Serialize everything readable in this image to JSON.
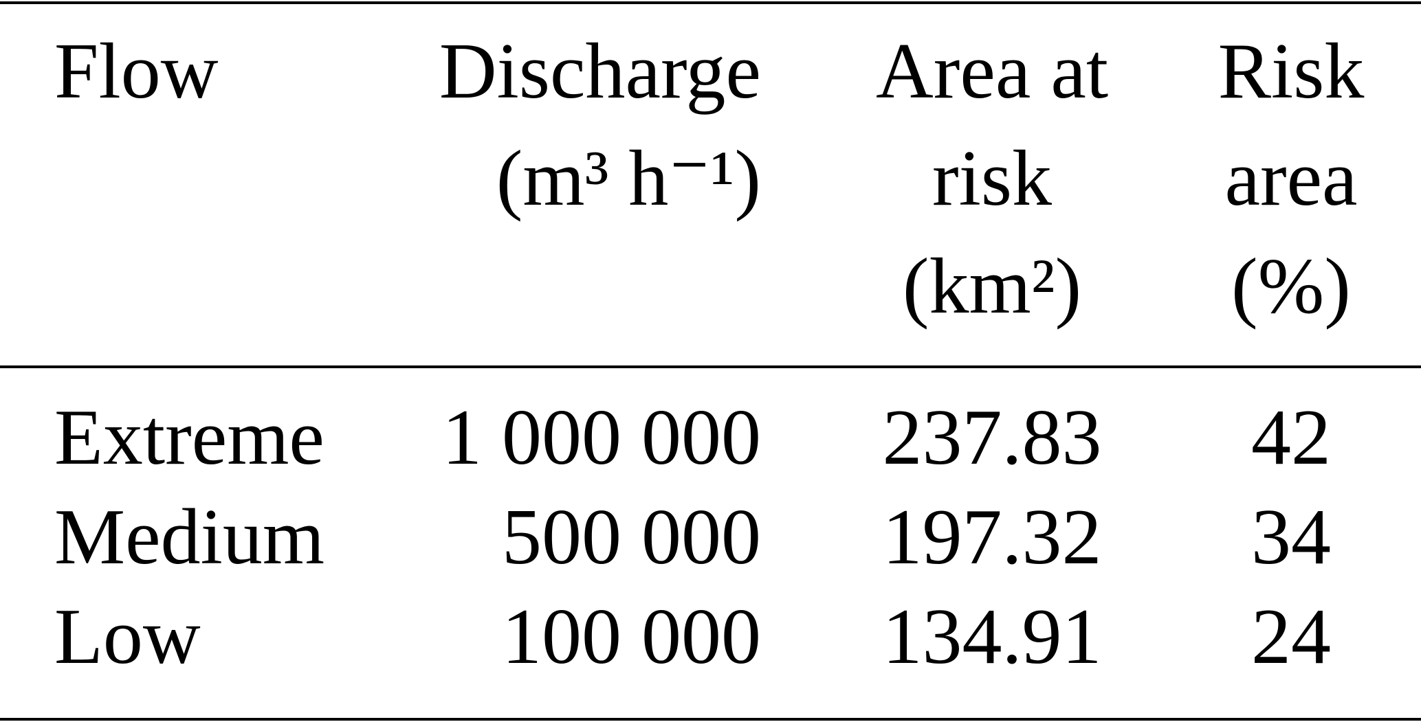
{
  "table": {
    "header": [
      [
        "Flow"
      ],
      [
        "Discharge",
        "(m³ h⁻¹)"
      ],
      [
        "Area at",
        "risk",
        "(km²)"
      ],
      [
        "Risk",
        "area",
        "(%)"
      ]
    ],
    "rows": [
      [
        "Extreme",
        "1 000 000",
        237.83,
        42
      ],
      [
        "Medium",
        "500 000",
        197.32,
        34
      ],
      [
        "Low",
        "100 000",
        134.91,
        24
      ]
    ]
  }
}
